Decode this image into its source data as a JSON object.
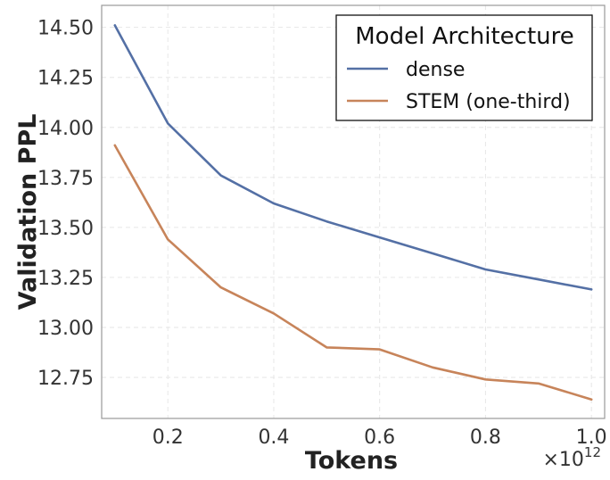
{
  "chart_data": {
    "type": "line",
    "title": "",
    "xlabel": "Tokens",
    "ylabel": "Validation PPL",
    "x_offset_label": "×10",
    "x_offset_exponent": "12",
    "x": [
      0.1,
      0.2,
      0.3,
      0.4,
      0.5,
      0.6,
      0.7,
      0.8,
      0.9,
      1.0
    ],
    "xlim": [
      0.075,
      1.025
    ],
    "ylim": [
      12.545,
      14.61
    ],
    "xticks": [
      {
        "value": 0.2,
        "label": "0.2"
      },
      {
        "value": 0.4,
        "label": "0.4"
      },
      {
        "value": 0.6,
        "label": "0.6"
      },
      {
        "value": 0.8,
        "label": "0.8"
      },
      {
        "value": 1.0,
        "label": "1.0"
      }
    ],
    "yticks": [
      {
        "value": 12.75,
        "label": "12.75"
      },
      {
        "value": 13.0,
        "label": "13.00"
      },
      {
        "value": 13.25,
        "label": "13.25"
      },
      {
        "value": 13.5,
        "label": "13.50"
      },
      {
        "value": 13.75,
        "label": "13.75"
      },
      {
        "value": 14.0,
        "label": "14.00"
      },
      {
        "value": 14.25,
        "label": "14.25"
      },
      {
        "value": 14.5,
        "label": "14.50"
      }
    ],
    "legend": {
      "title": "Model Architecture",
      "placement": "top-right"
    },
    "grid": true,
    "series": [
      {
        "name": "dense",
        "color": "#5470a5",
        "values": [
          14.51,
          14.02,
          13.76,
          13.62,
          13.53,
          13.45,
          13.37,
          13.29,
          13.24,
          13.19
        ]
      },
      {
        "name": "STEM (one-third)",
        "color": "#c7845a",
        "values": [
          13.91,
          13.44,
          13.2,
          13.07,
          12.9,
          12.89,
          12.8,
          12.74,
          12.72,
          12.64
        ]
      }
    ]
  }
}
